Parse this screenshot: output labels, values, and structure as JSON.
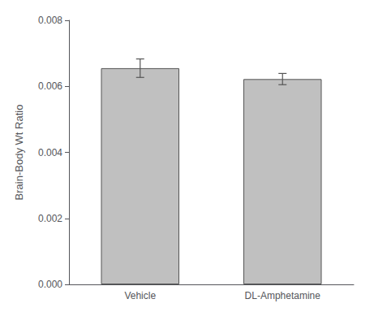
{
  "chart_data": {
    "type": "bar",
    "categories": [
      "Vehicle",
      "DL-Amphetamine"
    ],
    "values": [
      0.00655,
      0.00622
    ],
    "errors": [
      0.00028,
      0.00017
    ],
    "color": "#c0c0c0",
    "ylabel": "Brain-Body Wt Ratio",
    "ylim": [
      0.0,
      0.008
    ],
    "yticks": [
      {
        "value": 0,
        "label": "0.000"
      },
      0.002,
      0.004,
      0.006,
      0.008
    ],
    "grid": false
  }
}
